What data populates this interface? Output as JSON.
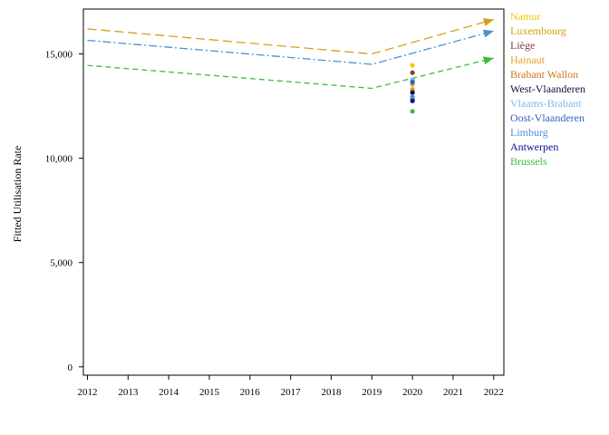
{
  "chart_data": {
    "type": "line",
    "title": "",
    "xlabel": "",
    "ylabel": "Fitted Utilisation Rate",
    "x_ticks": [
      "2012",
      "2013",
      "2014",
      "2015",
      "2016",
      "2017",
      "2018",
      "2019",
      "2020",
      "2021",
      "2022"
    ],
    "y_ticks": [
      {
        "value": 0,
        "label": "0"
      },
      {
        "value": 5000,
        "label": "5,000"
      },
      {
        "value": 10000,
        "label": "10,000"
      },
      {
        "value": 15000,
        "label": "15,000"
      }
    ],
    "xlim": [
      2011.9,
      2022.25
    ],
    "ylim": [
      -400,
      17150
    ],
    "grid": false,
    "legend_placement": "right",
    "lines": [
      {
        "label": "Luxembourg",
        "color": "#d4a017",
        "dash": "10,5",
        "x": [
          2012,
          2019,
          2022
        ],
        "y": [
          16200,
          15000,
          16650
        ]
      },
      {
        "label": "Limburg",
        "color": "#4a90d9",
        "dash": "9,3,2,3",
        "x": [
          2012,
          2019,
          2022
        ],
        "y": [
          15650,
          14500,
          16100
        ]
      },
      {
        "label": "Brussels",
        "color": "#3cbc3c",
        "dash": "6,4",
        "x": [
          2012,
          2019,
          2022
        ],
        "y": [
          14450,
          13350,
          14800
        ]
      }
    ],
    "series": [
      {
        "name": "Namur",
        "color": "#f2c800",
        "points": [
          {
            "x": 2020,
            "y": 14450
          }
        ]
      },
      {
        "name": "Luxembourg",
        "color": "#d4a017",
        "points": [
          {
            "x": 2020,
            "y": 13550
          }
        ]
      },
      {
        "name": "Liège",
        "color": "#8b3a3a",
        "points": [
          {
            "x": 2020,
            "y": 14100
          }
        ]
      },
      {
        "name": "Hainaut",
        "color": "#e0a030",
        "points": [
          {
            "x": 2020,
            "y": 13300
          }
        ]
      },
      {
        "name": "Brabant Wallon",
        "color": "#c87820",
        "points": [
          {
            "x": 2020,
            "y": 12850
          }
        ]
      },
      {
        "name": "West-Vlaanderen",
        "color": "#101040",
        "points": [
          {
            "x": 2020,
            "y": 13150
          }
        ]
      },
      {
        "name": "Vlaams-Brabant",
        "color": "#80b8e8",
        "points": [
          {
            "x": 2020,
            "y": 13750
          }
        ]
      },
      {
        "name": "Oost-Vlaanderen",
        "color": "#3060c0",
        "points": [
          {
            "x": 2020,
            "y": 13650
          }
        ]
      },
      {
        "name": "Limburg",
        "color": "#4a90d9",
        "points": [
          {
            "x": 2020,
            "y": 12950
          }
        ]
      },
      {
        "name": "Antwerpen",
        "color": "#101090",
        "points": [
          {
            "x": 2020,
            "y": 12750
          }
        ]
      },
      {
        "name": "Brussels",
        "color": "#3cbc3c",
        "points": [
          {
            "x": 2020,
            "y": 12250
          }
        ]
      }
    ]
  }
}
